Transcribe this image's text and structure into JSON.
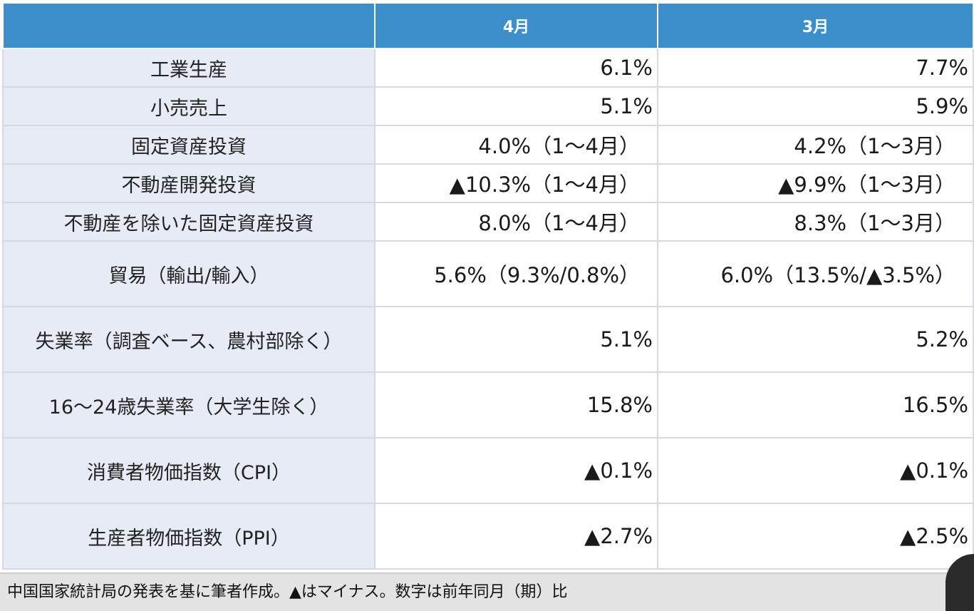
{
  "table": {
    "headers": [
      "",
      "4月",
      "3月"
    ],
    "rows": [
      {
        "label": "工業生産",
        "apr": "6.1%",
        "mar": "7.7%"
      },
      {
        "label": "小売売上",
        "apr": "5.1%",
        "mar": "5.9%"
      },
      {
        "label": "固定資産投資",
        "apr": "4.0%（1〜4月）",
        "mar": "4.2%（1〜3月）"
      },
      {
        "label": "不動産開発投資",
        "apr": "▲10.3%（1〜4月）",
        "mar": "▲9.9%（1〜3月）"
      },
      {
        "label": "不動産を除いた固定資産投資",
        "apr": "8.0%（1〜4月）",
        "mar": "8.3%（1〜3月）"
      },
      {
        "label": "貿易（輸出/輸入）",
        "apr": "5.6%（9.3%/0.8%）",
        "mar": "6.0%（13.5%/▲3.5%）"
      },
      {
        "label": "失業率（調査ベース、農村部除く）",
        "apr": "5.1%",
        "mar": "5.2%"
      },
      {
        "label": "16〜24歳失業率（大学生除く）",
        "apr": "15.8%",
        "mar": "16.5%"
      },
      {
        "label": "消費者物価指数（CPI）",
        "apr": "▲0.1%",
        "mar": "▲0.1%"
      },
      {
        "label": "生産者物価指数（PPI）",
        "apr": "▲2.7%",
        "mar": "▲2.5%"
      }
    ]
  },
  "footnote": "中国国家統計局の発表を基に筆者作成。▲はマイナス。数字は前年同月（期）比",
  "colors": {
    "header_bg": "#3d8fcb",
    "label_bg": "#e7ebf6",
    "footnote_bg": "#e3e3e3"
  }
}
